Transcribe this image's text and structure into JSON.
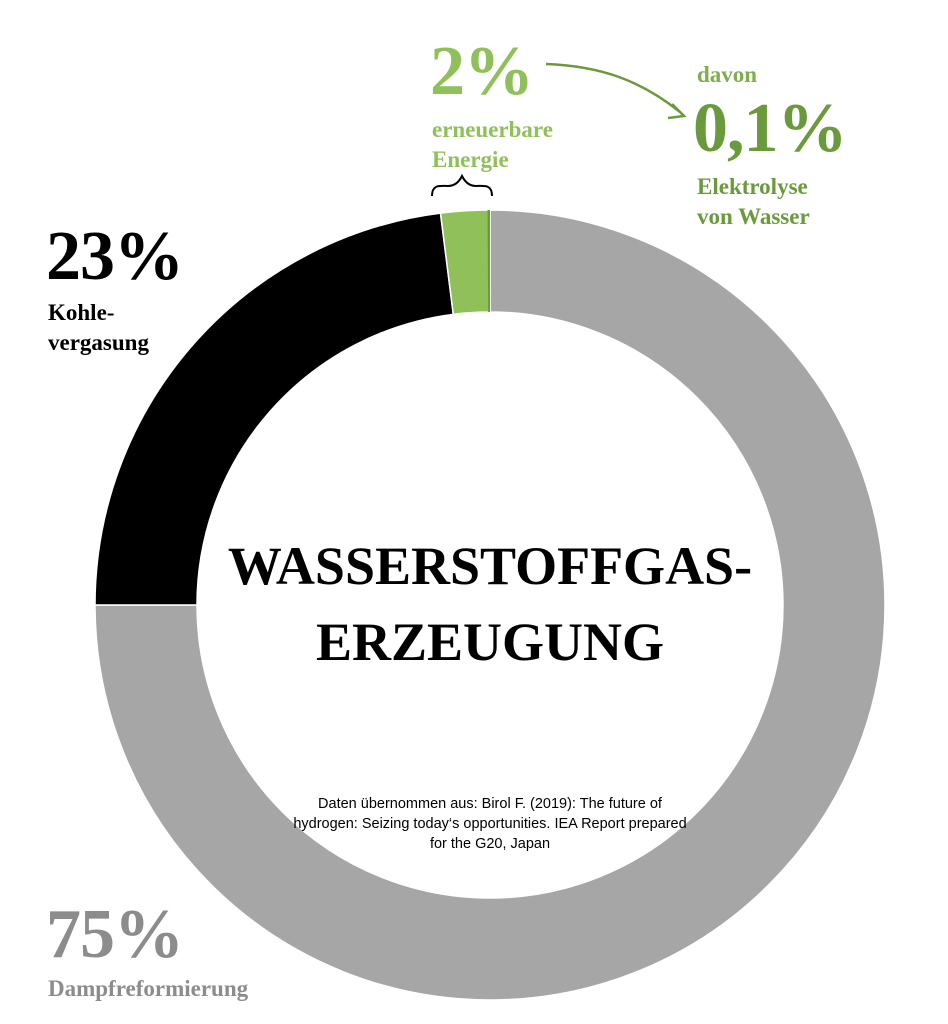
{
  "chart_data": {
    "type": "donut",
    "title": "WASSERSTOFFGAS-\nERZEUGUNG",
    "note": "Daten übernommen aus: Birol F. (2019): The future of hydrogen: Seizing today‘s opportunities. IEA Report prepared for the G20, Japan",
    "categories": [
      "Dampfreformierung",
      "Kohle-\nvergasung",
      "erneuerbare\nEnergie"
    ],
    "values": [
      75,
      23,
      2
    ],
    "value_labels": [
      "75%",
      "23%",
      "2%"
    ],
    "colors": [
      "#a6a6a6",
      "#000000",
      "#8fc05a"
    ],
    "breakdown": {
      "prefix": "davon",
      "name": "Elektrolyse\nvon Wasser",
      "value": 0.1,
      "value_label": "0,1%",
      "color": "#6b9a3c"
    }
  }
}
